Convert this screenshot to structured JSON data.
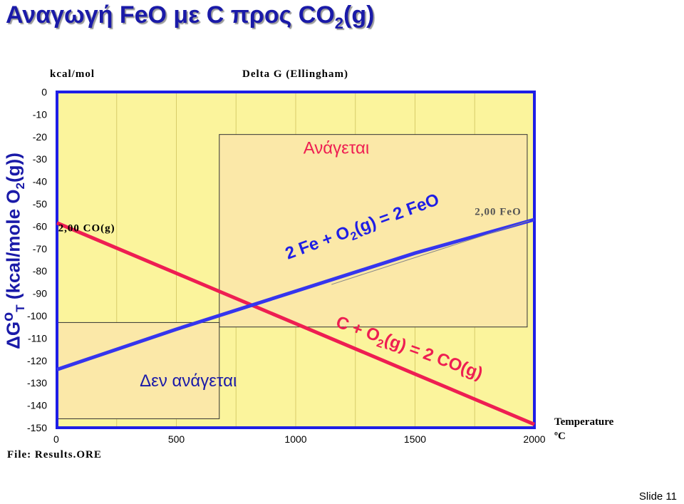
{
  "slide": {
    "title_main": "Αναγωγή FeO με C προς CO",
    "title_sub": "2",
    "title_tail": "(g)",
    "ylabel_main": "ΔG",
    "ylabel_sup": "o",
    "ylabel_sub1": "T",
    "ylabel_mid": " (kcal/mole O",
    "ylabel_sub2": "2",
    "ylabel_tail": "(g))",
    "units": "kcal/mol",
    "file_label": "File: Results.ORE",
    "xunit_line1": "Temperature",
    "xunit_line2": "ºC",
    "slide_number": "Slide 11"
  },
  "colors": {
    "plot_bg": "#fbf49c",
    "box_fill": "#fbe8a8",
    "frame": "#1e1ee6",
    "fe_line": "#3535ee",
    "c_line": "#ee1e52",
    "grid": "#d8cc6a",
    "text_blue": "#1a1aa8"
  },
  "chart_data": {
    "type": "line",
    "title": "Delta G (Ellingham)",
    "xlim": [
      0,
      2000
    ],
    "ylim": [
      -150,
      0
    ],
    "x_ticks": [
      "0",
      "500",
      "1000",
      "1500",
      "2000"
    ],
    "y_ticks": [
      "0",
      "-10",
      "-20",
      "-30",
      "-40",
      "-50",
      "-60",
      "-70",
      "-80",
      "-90",
      "-100",
      "-110",
      "-120",
      "-130",
      "-140",
      "-150"
    ],
    "grid": true,
    "series": [
      {
        "name": "2,00 FeO",
        "x": [
          0,
          500,
          1000,
          1500,
          2000
        ],
        "y": [
          -124,
          -106,
          -89,
          -72,
          -57
        ]
      },
      {
        "name": "2,00 CO(g)",
        "x": [
          0,
          500,
          1000,
          1500,
          2000
        ],
        "y": [
          -58.5,
          -81,
          -103.5,
          -126,
          -148.5
        ]
      }
    ],
    "regions": [
      {
        "label": "Ανάγεται",
        "x_range": [
          680,
          1970
        ],
        "y_range": [
          -105,
          -19
        ]
      },
      {
        "label": "Δεν ανάγεται",
        "x_range": [
          0,
          680
        ],
        "y_range": [
          -146,
          -103
        ]
      }
    ],
    "annotations": {
      "fe_reaction_main": "2 Fe + O",
      "fe_reaction_sub": "2",
      "fe_reaction_tail": "(g) = 2 FeO",
      "c_reaction_main": "C + O",
      "c_reaction_sub": "2",
      "c_reaction_tail": "(g) = 2 CO(g)"
    }
  }
}
